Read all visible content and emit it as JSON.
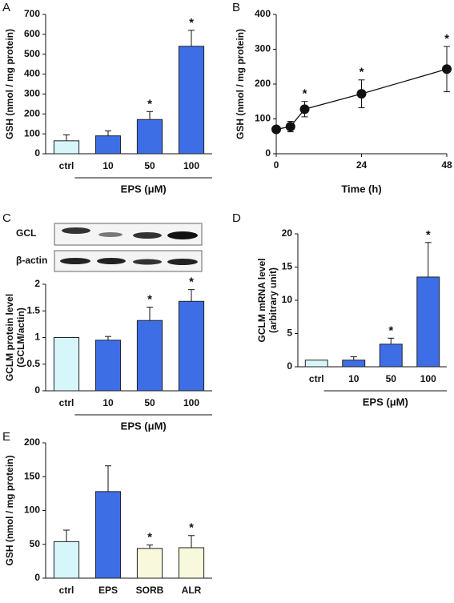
{
  "chart_data": [
    {
      "type": "bar",
      "panel": "A",
      "ylabel": "GSH  (nmol / mg protein)",
      "categories": [
        "ctrl",
        "10",
        "50",
        "100"
      ],
      "group_label": "EPS  (μM)",
      "values": [
        65,
        90,
        172,
        540
      ],
      "errors": [
        30,
        25,
        40,
        80
      ],
      "significance": [
        null,
        null,
        "*",
        "*"
      ],
      "colors": [
        "#d6f6fa",
        "#3e6ee6",
        "#3e6ee6",
        "#3e6ee6"
      ],
      "ylim": [
        0,
        700
      ],
      "yticks": [
        0,
        100,
        200,
        300,
        400,
        500,
        600,
        700
      ]
    },
    {
      "type": "line",
      "panel": "B",
      "ylabel": "GSH  (nmol / mg protein)",
      "xlabel": "Time  (h)",
      "x": [
        0,
        4,
        8,
        24,
        48
      ],
      "values": [
        70,
        78,
        128,
        172,
        243
      ],
      "errors": [
        5,
        15,
        22,
        40,
        65
      ],
      "significance": [
        null,
        null,
        "*",
        "*",
        "*"
      ],
      "color": "#111111",
      "xlim": [
        0,
        48
      ],
      "xticks": [
        0,
        24,
        48
      ],
      "ylim": [
        0,
        400
      ],
      "yticks": [
        0,
        100,
        200,
        300,
        400
      ]
    },
    {
      "type": "bar",
      "panel": "C",
      "ylabel": [
        "GCLM protein level",
        "(GCLM/actin)"
      ],
      "blot_labels": [
        "GCL",
        "β-actin"
      ],
      "categories": [
        "ctrl",
        "10",
        "50",
        "100"
      ],
      "group_label": "EPS  (μM)",
      "values": [
        1.0,
        0.95,
        1.32,
        1.68
      ],
      "errors": [
        0,
        0.07,
        0.25,
        0.22
      ],
      "significance": [
        null,
        null,
        "*",
        "*"
      ],
      "colors": [
        "#d6f6fa",
        "#3e6ee6",
        "#3e6ee6",
        "#3e6ee6"
      ],
      "ylim": [
        0,
        2
      ],
      "yticks": [
        0,
        0.5,
        1,
        1.5,
        2
      ]
    },
    {
      "type": "bar",
      "panel": "D",
      "ylabel": [
        "GCLM mRNA level",
        "(arbitrary unit)"
      ],
      "categories": [
        "ctrl",
        "10",
        "50",
        "100"
      ],
      "group_label": "EPS  (μM)",
      "values": [
        1.0,
        1.0,
        3.4,
        13.5
      ],
      "errors": [
        0,
        0.5,
        0.9,
        5.2
      ],
      "significance": [
        null,
        null,
        "*",
        "*"
      ],
      "colors": [
        "#d6f6fa",
        "#3e6ee6",
        "#3e6ee6",
        "#3e6ee6"
      ],
      "ylim": [
        0,
        20
      ],
      "yticks": [
        0,
        5,
        10,
        15,
        20
      ]
    },
    {
      "type": "bar",
      "panel": "E",
      "ylabel": "GSH  (nmol / mg protein)",
      "categories": [
        "ctrl",
        "EPS",
        "SORB",
        "ALR"
      ],
      "values": [
        54,
        128,
        44,
        45
      ],
      "errors": [
        17,
        38,
        5,
        18
      ],
      "significance": [
        null,
        null,
        "*",
        "*"
      ],
      "colors": [
        "#d6f6fa",
        "#3e6ee6",
        "#f8f8dc",
        "#f8f8dc"
      ],
      "ylim": [
        0,
        200
      ],
      "yticks": [
        0,
        50,
        100,
        150,
        200
      ]
    }
  ]
}
